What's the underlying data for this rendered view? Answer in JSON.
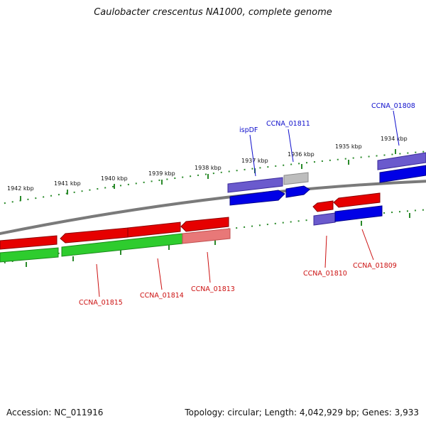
{
  "title": "Caulobacter crescentus NA1000, complete genome",
  "accession": "Accession: NC_011916",
  "summary": "Topology: circular; Length: 4,042,929 bp; Genes: 3,933",
  "colors": {
    "backbone": "#7a7a7a",
    "forward_cds": "#0000e6",
    "reverse_cds": "#e60000",
    "forward_feature": "#6a5acd",
    "reverse_feature": "#e87878",
    "rna": "#2ecc2e",
    "tick": "#2a8a2a",
    "label_forward": "#1010cc",
    "label_reverse": "#cc1010"
  },
  "ruler_top": [
    "1942 kbp",
    "1941 kbp",
    "1940 kbp",
    "1939 kbp",
    "1938 kbp",
    "1937 kbp",
    "1936 kbp",
    "1935 kbp",
    "1934 kbp"
  ],
  "gene_labels_top": [
    "ispDF",
    "CCNA_01811",
    "CCNA_01808"
  ],
  "gene_labels_bottom": [
    "CCNA_01815",
    "CCNA_01814",
    "CCNA_01813",
    "CCNA_01810",
    "CCNA_01809"
  ]
}
